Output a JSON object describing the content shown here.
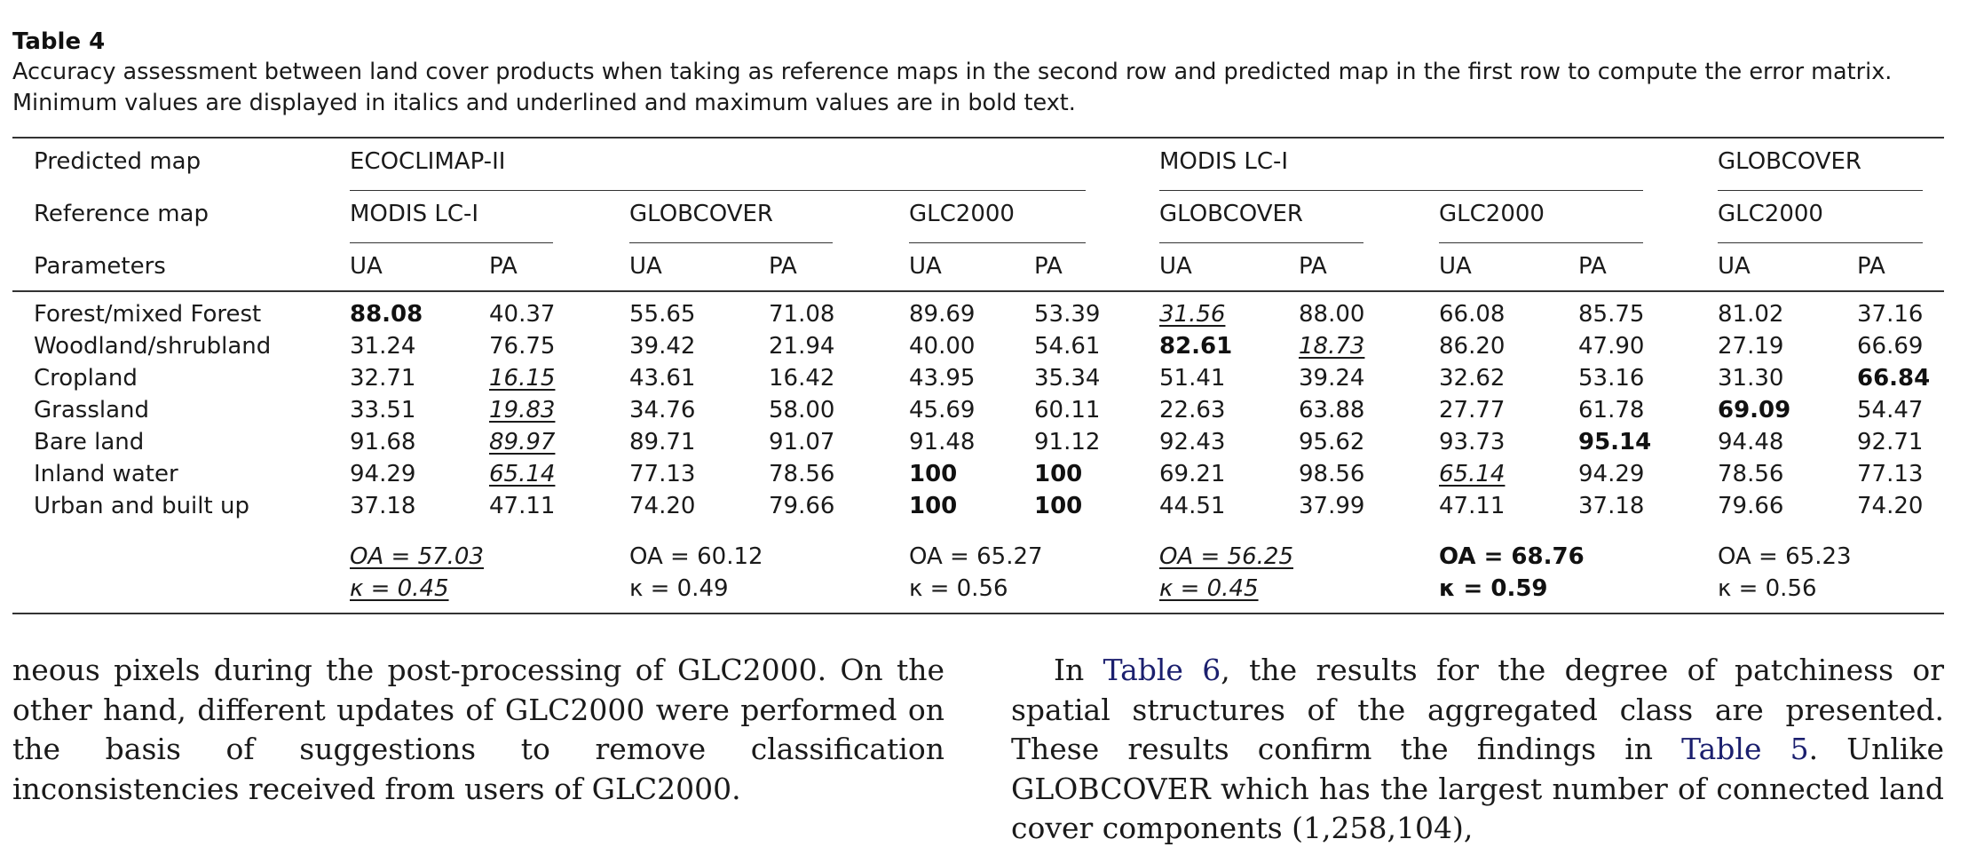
{
  "table": {
    "title": "Table 4",
    "caption": "Accuracy assessment between land cover products when taking as reference maps in the second row and predicted map in the first row to compute the error matrix. Minimum values are displayed in italics and underlined and maximum values are in bold text.",
    "row_labels": {
      "predicted": "Predicted map",
      "reference": "Reference map",
      "parameters": "Parameters"
    },
    "predicted_maps": [
      "ECOCLIMAP-II",
      "MODIS LC-I",
      "GLOBCOVER"
    ],
    "comparisons": [
      {
        "reference": "MODIS LC-I",
        "ua": "UA",
        "pa": "PA"
      },
      {
        "reference": "GLOBCOVER",
        "ua": "UA",
        "pa": "PA"
      },
      {
        "reference": "GLC2000",
        "ua": "UA",
        "pa": "PA"
      },
      {
        "reference": "GLOBCOVER",
        "ua": "UA",
        "pa": "PA"
      },
      {
        "reference": "GLC2000",
        "ua": "UA",
        "pa": "PA"
      },
      {
        "reference": "GLC2000",
        "ua": "UA",
        "pa": "PA"
      }
    ],
    "rows": [
      {
        "label": "Forest/mixed Forest",
        "values": [
          "88.08",
          "40.37",
          "55.65",
          "71.08",
          "89.69",
          "53.39",
          "31.56",
          "88.00",
          "66.08",
          "85.75",
          "81.02",
          "37.16"
        ]
      },
      {
        "label": "Woodland/shrubland",
        "values": [
          "31.24",
          "76.75",
          "39.42",
          "21.94",
          "40.00",
          "54.61",
          "82.61",
          "18.73",
          "86.20",
          "47.90",
          "27.19",
          "66.69"
        ]
      },
      {
        "label": "Cropland",
        "values": [
          "32.71",
          "16.15",
          "43.61",
          "16.42",
          "43.95",
          "35.34",
          "51.41",
          "39.24",
          "32.62",
          "53.16",
          "31.30",
          "66.84"
        ]
      },
      {
        "label": "Grassland",
        "values": [
          "33.51",
          "19.83",
          "34.76",
          "58.00",
          "45.69",
          "60.11",
          "22.63",
          "63.88",
          "27.77",
          "61.78",
          "69.09",
          "54.47"
        ]
      },
      {
        "label": "Bare land",
        "values": [
          "91.68",
          "89.97",
          "89.71",
          "91.07",
          "91.48",
          "91.12",
          "92.43",
          "95.62",
          "93.73",
          "95.14",
          "94.48",
          "92.71"
        ]
      },
      {
        "label": "Inland water",
        "values": [
          "94.29",
          "65.14",
          "77.13",
          "78.56",
          "100",
          "100",
          "69.21",
          "98.56",
          "65.14",
          "94.29",
          "78.56",
          "77.13"
        ]
      },
      {
        "label": "Urban and built up",
        "values": [
          "37.18",
          "47.11",
          "74.20",
          "79.66",
          "100",
          "100",
          "44.51",
          "37.99",
          "47.11",
          "37.18",
          "79.66",
          "74.20"
        ]
      }
    ],
    "summary": [
      {
        "oa": "OA = 57.03",
        "kappa": "κ = 0.45"
      },
      {
        "oa": "OA = 60.12",
        "kappa": "κ = 0.49"
      },
      {
        "oa": "OA = 65.27",
        "kappa": "κ = 0.56"
      },
      {
        "oa": "OA = 56.25",
        "kappa": "κ = 0.45"
      },
      {
        "oa": "OA = 68.76",
        "kappa": "κ = 0.59"
      },
      {
        "oa": "OA = 65.23",
        "kappa": "κ = 0.56"
      }
    ],
    "bold_cells": [
      [
        0,
        0
      ],
      [
        1,
        6
      ],
      [
        2,
        11
      ],
      [
        3,
        10
      ],
      [
        4,
        9
      ],
      [
        5,
        4
      ],
      [
        5,
        5
      ],
      [
        6,
        4
      ],
      [
        6,
        5
      ]
    ],
    "italic_underline_cells": [
      [
        0,
        6
      ],
      [
        1,
        7
      ],
      [
        2,
        1
      ],
      [
        3,
        1
      ],
      [
        4,
        1
      ],
      [
        5,
        1
      ],
      [
        5,
        8
      ]
    ],
    "summary_bold": [
      4
    ],
    "summary_italic_underline": [
      0,
      3
    ]
  },
  "body": {
    "left": "neous pixels during the post-processing of GLC2000. On the other hand, different updates of GLC2000 were performed on the basis of suggestions to remove classification inconsistencies received from users of GLC2000.",
    "right_p1": "In ",
    "right_link1": "Table 6",
    "right_p2": ", the results for the degree of patchiness or spatial structures of the aggregated class are presented. These results confirm the findings in ",
    "right_link2": "Table 5",
    "right_p3": ". Unlike GLOBCOVER which has the largest number of connected land cover components (1,258,104),",
    "link_color": "#1b1f6e"
  }
}
